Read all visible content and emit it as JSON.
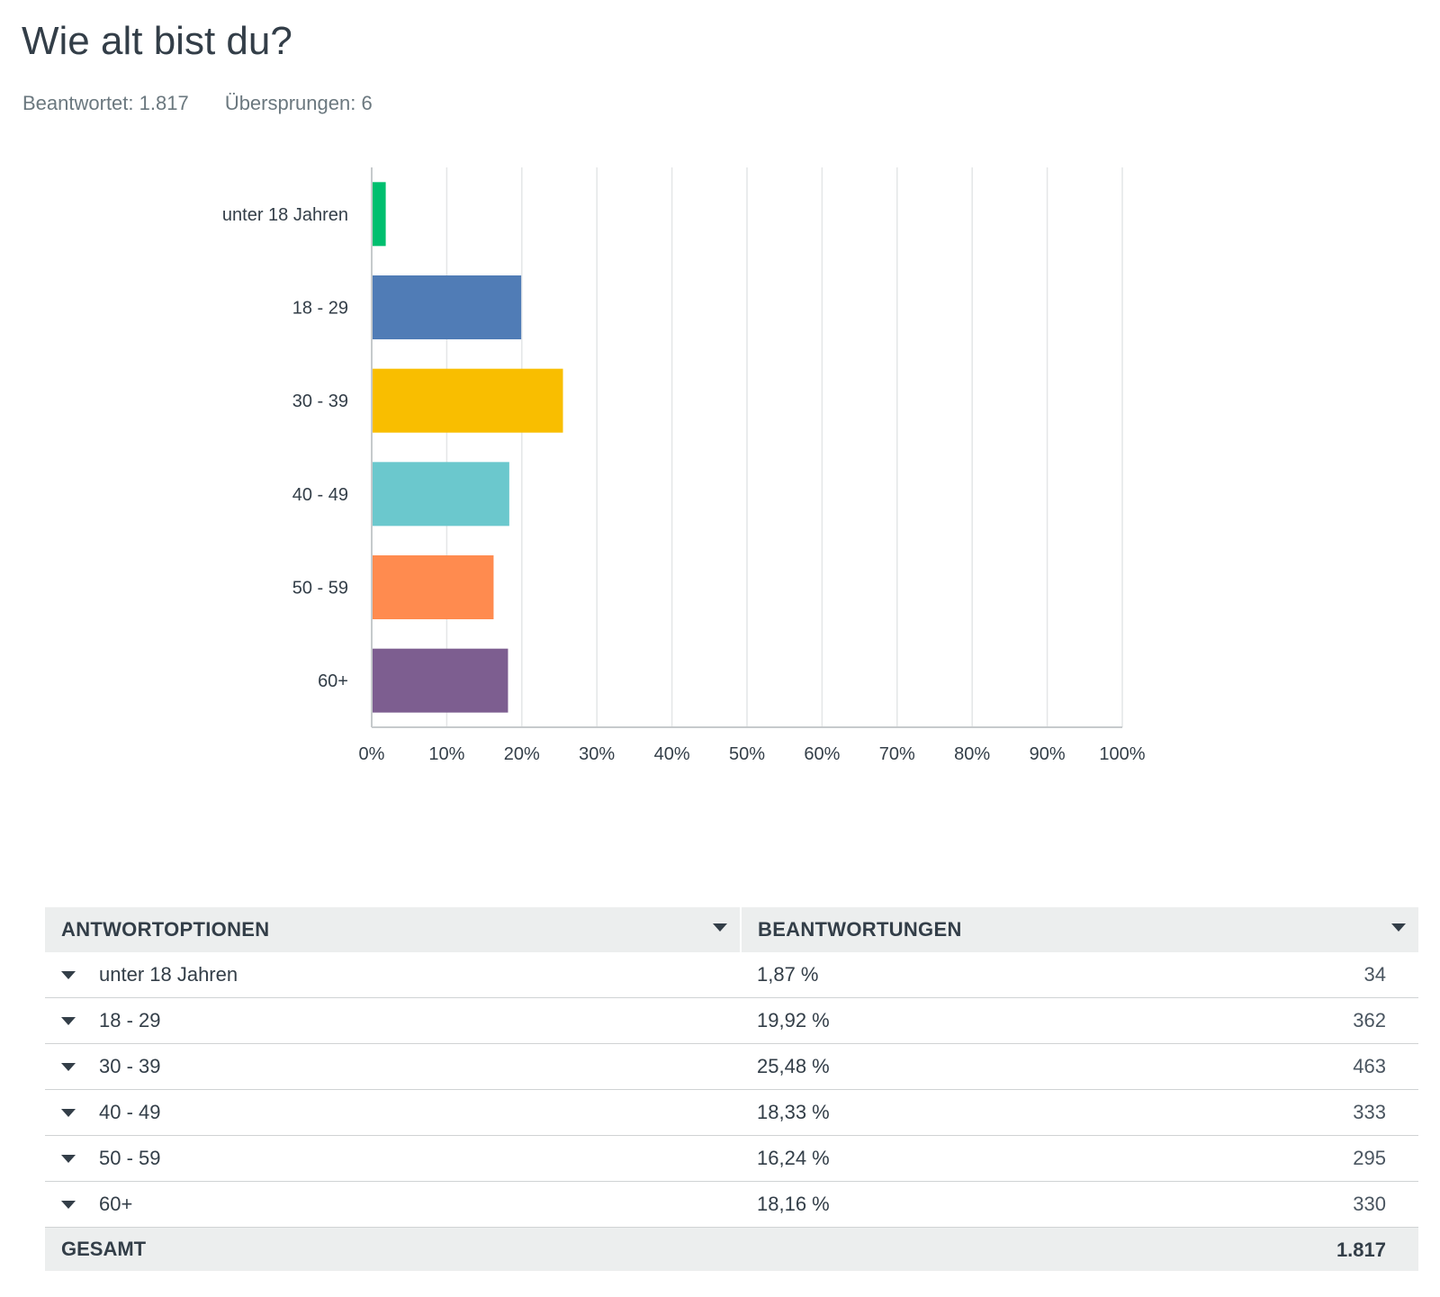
{
  "question": {
    "title": "Wie alt bist du?",
    "answered": "Beantwortet: 1.817",
    "skipped": "Übersprungen: 6"
  },
  "colors": {
    "accent": "#00bf6f",
    "grid": "#e4e6e7",
    "axis": "#c6cacc",
    "label": "#333e48",
    "header_bg": "#eceeee"
  },
  "chart_data": {
    "type": "bar",
    "orientation": "horizontal",
    "categories": [
      "unter 18 Jahren",
      "18 - 29",
      "30 - 39",
      "40 - 49",
      "50 - 59",
      "60+"
    ],
    "values": [
      1.87,
      19.92,
      25.48,
      18.33,
      16.24,
      18.16
    ],
    "colors": [
      "#00bf6f",
      "#507cb6",
      "#f9be00",
      "#6bc8cd",
      "#ff8b4f",
      "#7d5e90"
    ],
    "xlim": [
      0,
      100
    ],
    "xticks": [
      "0%",
      "10%",
      "20%",
      "30%",
      "40%",
      "50%",
      "60%",
      "70%",
      "80%",
      "90%",
      "100%"
    ],
    "grid": true
  },
  "table": {
    "headers": [
      "ANTWORTOPTIONEN",
      "BEANTWORTUNGEN"
    ],
    "rows": [
      {
        "option": "unter 18 Jahren",
        "percent": "1,87 %",
        "count": "34"
      },
      {
        "option": "18 - 29",
        "percent": "19,92 %",
        "count": "362"
      },
      {
        "option": "30 - 39",
        "percent": "25,48 %",
        "count": "463"
      },
      {
        "option": "40 - 49",
        "percent": "18,33 %",
        "count": "333"
      },
      {
        "option": "50 - 59",
        "percent": "16,24 %",
        "count": "295"
      },
      {
        "option": "60+",
        "percent": "18,16 %",
        "count": "330"
      }
    ],
    "total_label": "GESAMT",
    "total_count": "1.817"
  }
}
